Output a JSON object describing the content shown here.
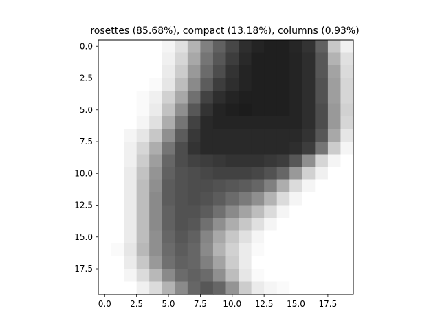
{
  "chart_data": {
    "type": "heatmap",
    "title": "rosettes (85.68%), compact (13.18%), columns (0.93%)",
    "xlabel": "",
    "ylabel": "",
    "colormap": "gray_r",
    "value_range": [
      0,
      1
    ],
    "rows": 20,
    "cols": 20,
    "xlim": [
      -0.5,
      19.5
    ],
    "ylim": [
      19.5,
      -0.5
    ],
    "x_ticks": [
      {
        "value": 0.0,
        "label": "0.0"
      },
      {
        "value": 2.5,
        "label": "2.5"
      },
      {
        "value": 5.0,
        "label": "5.0"
      },
      {
        "value": 7.5,
        "label": "7.5"
      },
      {
        "value": 10.0,
        "label": "10.0"
      },
      {
        "value": 12.5,
        "label": "12.5"
      },
      {
        "value": 15.0,
        "label": "15.0"
      },
      {
        "value": 17.5,
        "label": "17.5"
      }
    ],
    "y_ticks": [
      {
        "value": 0.0,
        "label": "0.0"
      },
      {
        "value": 2.5,
        "label": "2.5"
      },
      {
        "value": 5.0,
        "label": "5.0"
      },
      {
        "value": 7.5,
        "label": "7.5"
      },
      {
        "value": 10.0,
        "label": "10.0"
      },
      {
        "value": 12.5,
        "label": "12.5"
      },
      {
        "value": 15.0,
        "label": "15.0"
      },
      {
        "value": 17.5,
        "label": "17.5"
      }
    ],
    "grid": false,
    "values": [
      [
        0,
        0,
        0,
        0,
        0,
        0.04,
        0.12,
        0.3,
        0.5,
        0.62,
        0.72,
        0.82,
        0.86,
        0.88,
        0.88,
        0.85,
        0.8,
        0.62,
        0.22,
        0.06
      ],
      [
        0,
        0,
        0,
        0,
        0,
        0.06,
        0.16,
        0.34,
        0.54,
        0.66,
        0.76,
        0.84,
        0.88,
        0.88,
        0.88,
        0.86,
        0.82,
        0.66,
        0.3,
        0.12
      ],
      [
        0,
        0,
        0,
        0,
        0,
        0.08,
        0.2,
        0.4,
        0.58,
        0.7,
        0.8,
        0.86,
        0.88,
        0.88,
        0.88,
        0.86,
        0.82,
        0.66,
        0.36,
        0.14
      ],
      [
        0,
        0,
        0,
        0,
        0.02,
        0.1,
        0.26,
        0.46,
        0.64,
        0.76,
        0.82,
        0.86,
        0.88,
        0.88,
        0.88,
        0.86,
        0.82,
        0.68,
        0.38,
        0.16
      ],
      [
        0,
        0,
        0,
        0.02,
        0.06,
        0.18,
        0.34,
        0.56,
        0.74,
        0.82,
        0.86,
        0.88,
        0.88,
        0.88,
        0.88,
        0.86,
        0.82,
        0.68,
        0.38,
        0.16
      ],
      [
        0,
        0,
        0,
        0.02,
        0.08,
        0.24,
        0.44,
        0.66,
        0.8,
        0.86,
        0.88,
        0.89,
        0.88,
        0.88,
        0.88,
        0.86,
        0.82,
        0.7,
        0.4,
        0.18
      ],
      [
        0,
        0,
        0,
        0.04,
        0.12,
        0.32,
        0.54,
        0.74,
        0.84,
        0.86,
        0.86,
        0.86,
        0.86,
        0.86,
        0.86,
        0.86,
        0.82,
        0.7,
        0.4,
        0.16
      ],
      [
        0,
        0,
        0.04,
        0.1,
        0.22,
        0.44,
        0.64,
        0.78,
        0.84,
        0.84,
        0.84,
        0.84,
        0.84,
        0.84,
        0.84,
        0.84,
        0.8,
        0.66,
        0.34,
        0.1
      ],
      [
        0,
        0,
        0.06,
        0.16,
        0.32,
        0.54,
        0.7,
        0.8,
        0.84,
        0.84,
        0.84,
        0.84,
        0.84,
        0.84,
        0.84,
        0.82,
        0.76,
        0.54,
        0.2,
        0.04
      ],
      [
        0,
        0,
        0.06,
        0.2,
        0.38,
        0.6,
        0.7,
        0.74,
        0.76,
        0.78,
        0.8,
        0.8,
        0.8,
        0.78,
        0.76,
        0.66,
        0.44,
        0.16,
        0.04,
        0
      ],
      [
        0,
        0,
        0.08,
        0.24,
        0.42,
        0.62,
        0.68,
        0.7,
        0.72,
        0.74,
        0.74,
        0.74,
        0.72,
        0.68,
        0.6,
        0.4,
        0.18,
        0.06,
        0,
        0
      ],
      [
        0,
        0,
        0.08,
        0.26,
        0.44,
        0.64,
        0.68,
        0.7,
        0.7,
        0.68,
        0.66,
        0.64,
        0.6,
        0.5,
        0.32,
        0.14,
        0.04,
        0,
        0,
        0
      ],
      [
        0,
        0,
        0.08,
        0.26,
        0.46,
        0.64,
        0.68,
        0.7,
        0.68,
        0.64,
        0.58,
        0.52,
        0.44,
        0.3,
        0.14,
        0.04,
        0,
        0,
        0,
        0
      ],
      [
        0,
        0,
        0.08,
        0.26,
        0.46,
        0.62,
        0.68,
        0.68,
        0.64,
        0.56,
        0.46,
        0.36,
        0.26,
        0.14,
        0.04,
        0,
        0,
        0,
        0,
        0
      ],
      [
        0,
        0,
        0.08,
        0.26,
        0.46,
        0.62,
        0.68,
        0.66,
        0.56,
        0.44,
        0.32,
        0.22,
        0.12,
        0.04,
        0,
        0,
        0,
        0,
        0,
        0
      ],
      [
        0,
        0,
        0.08,
        0.26,
        0.44,
        0.6,
        0.66,
        0.62,
        0.48,
        0.34,
        0.22,
        0.12,
        0.04,
        0,
        0,
        0,
        0,
        0,
        0,
        0
      ],
      [
        0,
        0.02,
        0.1,
        0.28,
        0.44,
        0.58,
        0.64,
        0.6,
        0.46,
        0.3,
        0.18,
        0.08,
        0.02,
        0,
        0,
        0,
        0,
        0,
        0,
        0
      ],
      [
        0,
        0,
        0.08,
        0.22,
        0.4,
        0.56,
        0.62,
        0.6,
        0.5,
        0.36,
        0.2,
        0.08,
        0,
        0,
        0,
        0,
        0,
        0,
        0,
        0
      ],
      [
        0,
        0,
        0.04,
        0.14,
        0.28,
        0.46,
        0.58,
        0.62,
        0.58,
        0.44,
        0.26,
        0.1,
        0.02,
        0,
        0,
        0,
        0,
        0,
        0,
        0
      ],
      [
        0,
        0,
        0,
        0.06,
        0.14,
        0.3,
        0.46,
        0.6,
        0.66,
        0.6,
        0.42,
        0.2,
        0.08,
        0.04,
        0.02,
        0,
        0,
        0,
        0,
        0
      ]
    ]
  }
}
